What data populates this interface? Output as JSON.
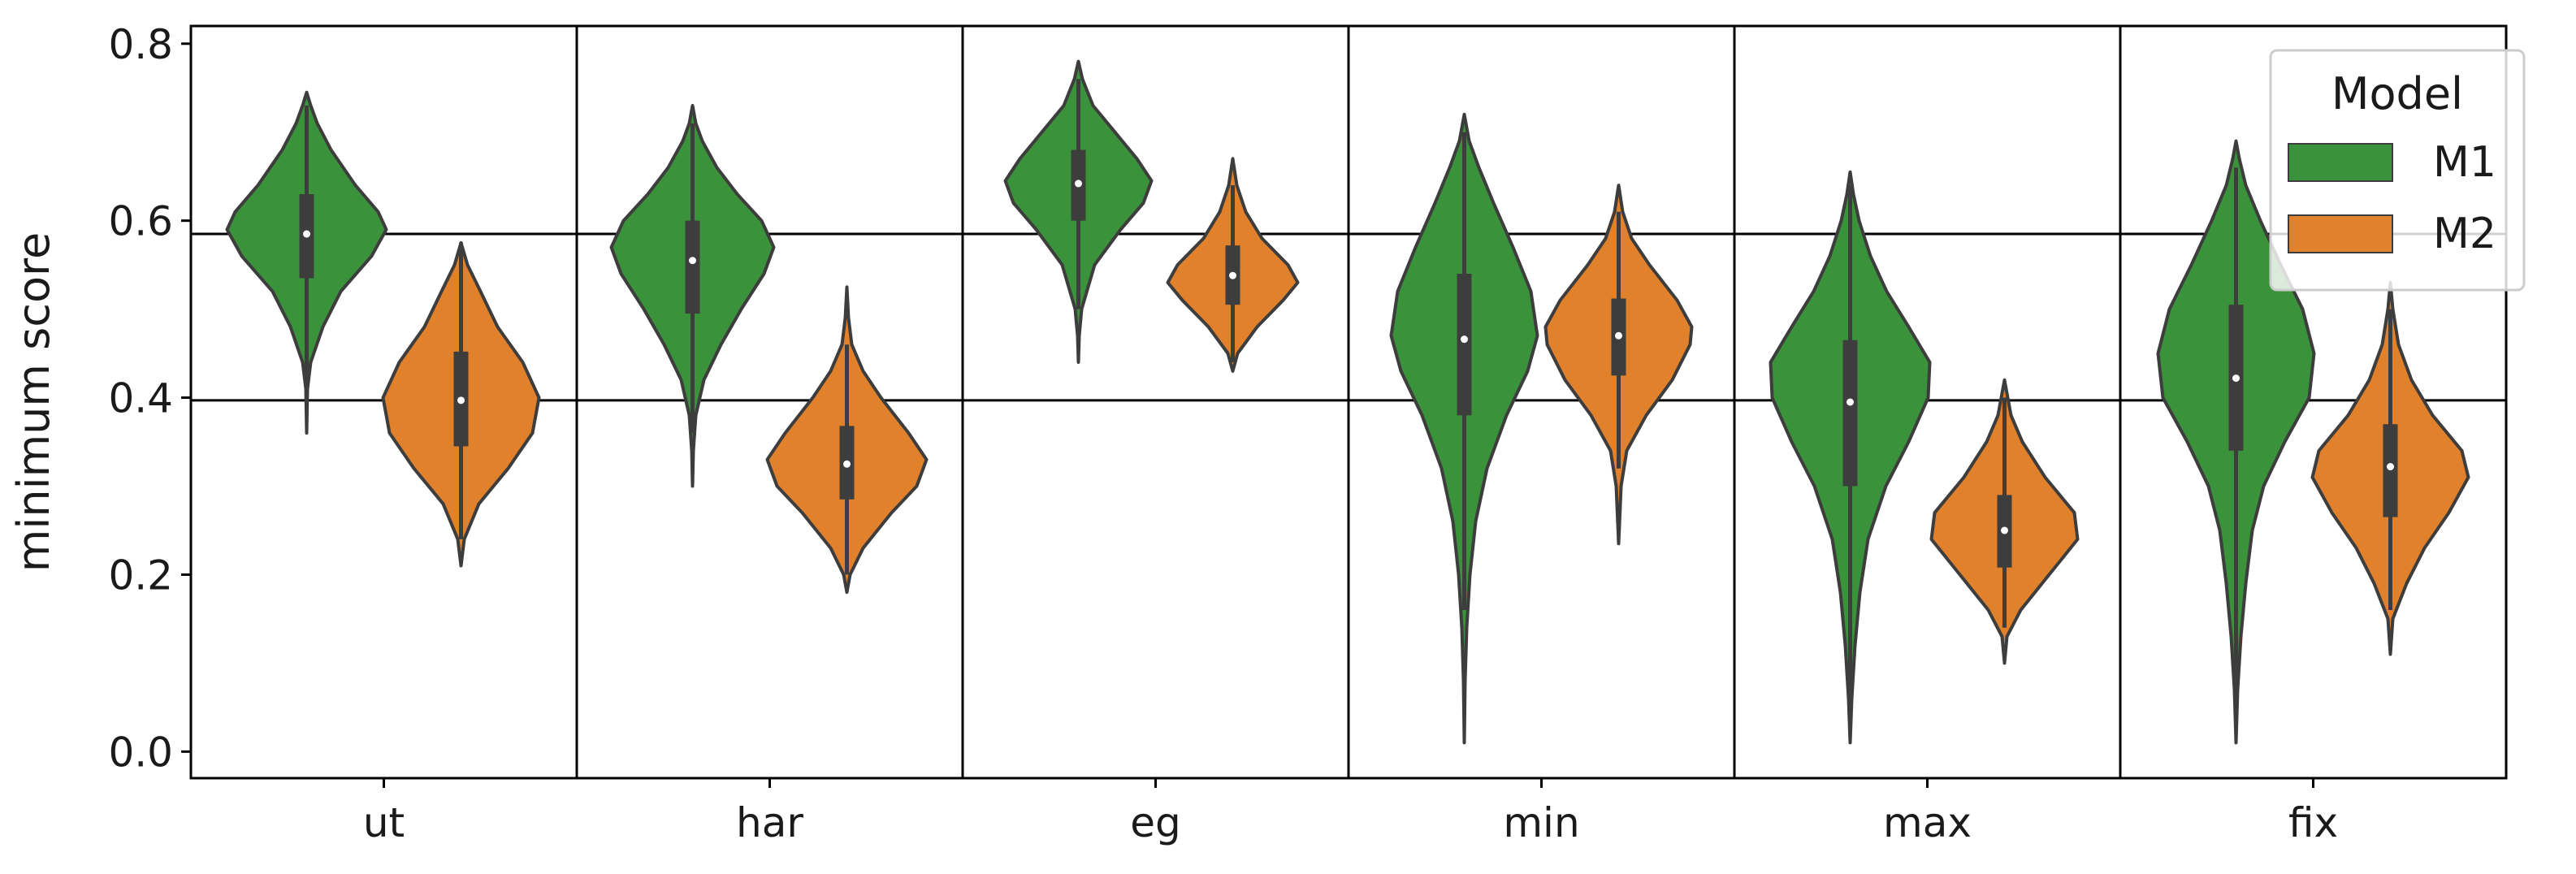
{
  "chart_data": {
    "type": "violin",
    "title": "",
    "xlabel": "",
    "ylabel": "minimum score",
    "ylim": [
      -0.03,
      0.82
    ],
    "yticks": [
      0.0,
      0.2,
      0.4,
      0.6,
      0.8
    ],
    "ytick_labels": [
      "0.0",
      "0.2",
      "0.4",
      "0.6",
      "0.8"
    ],
    "categories": [
      "ut",
      "har",
      "eg",
      "min",
      "max",
      "fix"
    ],
    "reference_lines": [
      0.585,
      0.397
    ],
    "legend": {
      "title": "Model",
      "position": "top-right"
    },
    "series": [
      {
        "name": "M1",
        "color": "#3a923a",
        "violins": [
          {
            "min": 0.36,
            "max": 0.745,
            "q1": 0.535,
            "median": 0.585,
            "q3": 0.63,
            "wlo": 0.41,
            "whi": 0.73,
            "profile": [
              [
                0.36,
                0
              ],
              [
                0.41,
                0.01
              ],
              [
                0.44,
                0.05
              ],
              [
                0.48,
                0.2
              ],
              [
                0.52,
                0.42
              ],
              [
                0.56,
                0.8
              ],
              [
                0.59,
                0.98
              ],
              [
                0.61,
                0.88
              ],
              [
                0.64,
                0.6
              ],
              [
                0.68,
                0.3
              ],
              [
                0.71,
                0.13
              ],
              [
                0.73,
                0.05
              ],
              [
                0.745,
                0
              ]
            ]
          },
          {
            "min": 0.3,
            "max": 0.73,
            "q1": 0.495,
            "median": 0.555,
            "q3": 0.6,
            "wlo": 0.36,
            "whi": 0.71,
            "profile": [
              [
                0.3,
                0
              ],
              [
                0.34,
                0.01
              ],
              [
                0.38,
                0.04
              ],
              [
                0.42,
                0.14
              ],
              [
                0.46,
                0.35
              ],
              [
                0.5,
                0.6
              ],
              [
                0.54,
                0.88
              ],
              [
                0.57,
                1.0
              ],
              [
                0.6,
                0.85
              ],
              [
                0.63,
                0.55
              ],
              [
                0.66,
                0.3
              ],
              [
                0.69,
                0.12
              ],
              [
                0.71,
                0.04
              ],
              [
                0.73,
                0
              ]
            ]
          },
          {
            "min": 0.44,
            "max": 0.78,
            "q1": 0.6,
            "median": 0.642,
            "q3": 0.68,
            "wlo": 0.5,
            "whi": 0.76,
            "profile": [
              [
                0.44,
                0
              ],
              [
                0.47,
                0.01
              ],
              [
                0.5,
                0.04
              ],
              [
                0.55,
                0.2
              ],
              [
                0.59,
                0.52
              ],
              [
                0.62,
                0.8
              ],
              [
                0.645,
                0.9
              ],
              [
                0.67,
                0.72
              ],
              [
                0.7,
                0.45
              ],
              [
                0.73,
                0.18
              ],
              [
                0.76,
                0.05
              ],
              [
                0.78,
                0
              ]
            ]
          },
          {
            "min": 0.01,
            "max": 0.72,
            "q1": 0.38,
            "median": 0.466,
            "q3": 0.54,
            "wlo": 0.16,
            "whi": 0.7,
            "profile": [
              [
                0.01,
                0
              ],
              [
                0.08,
                0.01
              ],
              [
                0.14,
                0.03
              ],
              [
                0.2,
                0.07
              ],
              [
                0.26,
                0.14
              ],
              [
                0.32,
                0.28
              ],
              [
                0.38,
                0.52
              ],
              [
                0.43,
                0.78
              ],
              [
                0.47,
                0.9
              ],
              [
                0.52,
                0.82
              ],
              [
                0.57,
                0.6
              ],
              [
                0.62,
                0.36
              ],
              [
                0.66,
                0.18
              ],
              [
                0.69,
                0.06
              ],
              [
                0.72,
                0
              ]
            ]
          },
          {
            "min": 0.01,
            "max": 0.655,
            "q1": 0.3,
            "median": 0.395,
            "q3": 0.465,
            "wlo": 0.05,
            "whi": 0.64,
            "profile": [
              [
                0.01,
                0
              ],
              [
                0.06,
                0.02
              ],
              [
                0.12,
                0.06
              ],
              [
                0.18,
                0.12
              ],
              [
                0.24,
                0.22
              ],
              [
                0.3,
                0.44
              ],
              [
                0.35,
                0.72
              ],
              [
                0.4,
                0.96
              ],
              [
                0.44,
                0.98
              ],
              [
                0.48,
                0.72
              ],
              [
                0.52,
                0.45
              ],
              [
                0.56,
                0.25
              ],
              [
                0.6,
                0.11
              ],
              [
                0.63,
                0.04
              ],
              [
                0.655,
                0
              ]
            ]
          },
          {
            "min": 0.01,
            "max": 0.69,
            "q1": 0.34,
            "median": 0.422,
            "q3": 0.505,
            "wlo": 0.06,
            "whi": 0.66,
            "profile": [
              [
                0.01,
                0
              ],
              [
                0.07,
                0.02
              ],
              [
                0.13,
                0.06
              ],
              [
                0.19,
                0.12
              ],
              [
                0.25,
                0.2
              ],
              [
                0.3,
                0.34
              ],
              [
                0.35,
                0.6
              ],
              [
                0.4,
                0.9
              ],
              [
                0.45,
                0.96
              ],
              [
                0.5,
                0.82
              ],
              [
                0.55,
                0.55
              ],
              [
                0.6,
                0.3
              ],
              [
                0.64,
                0.12
              ],
              [
                0.67,
                0.04
              ],
              [
                0.69,
                0
              ]
            ]
          }
        ]
      },
      {
        "name": "M2",
        "color": "#e1812c",
        "violins": [
          {
            "min": 0.21,
            "max": 0.575,
            "q1": 0.345,
            "median": 0.397,
            "q3": 0.452,
            "wlo": 0.24,
            "whi": 0.575,
            "profile": [
              [
                0.21,
                0
              ],
              [
                0.24,
                0.04
              ],
              [
                0.28,
                0.22
              ],
              [
                0.32,
                0.58
              ],
              [
                0.36,
                0.88
              ],
              [
                0.4,
                0.96
              ],
              [
                0.44,
                0.76
              ],
              [
                0.48,
                0.45
              ],
              [
                0.52,
                0.24
              ],
              [
                0.55,
                0.08
              ],
              [
                0.575,
                0
              ]
            ]
          },
          {
            "min": 0.18,
            "max": 0.525,
            "q1": 0.285,
            "median": 0.325,
            "q3": 0.368,
            "wlo": 0.2,
            "whi": 0.46,
            "profile": [
              [
                0.18,
                0
              ],
              [
                0.2,
                0.04
              ],
              [
                0.23,
                0.2
              ],
              [
                0.27,
                0.55
              ],
              [
                0.3,
                0.86
              ],
              [
                0.33,
                0.98
              ],
              [
                0.36,
                0.76
              ],
              [
                0.4,
                0.42
              ],
              [
                0.43,
                0.2
              ],
              [
                0.46,
                0.06
              ],
              [
                0.49,
                0.02
              ],
              [
                0.525,
                0
              ]
            ]
          },
          {
            "min": 0.43,
            "max": 0.67,
            "q1": 0.505,
            "median": 0.538,
            "q3": 0.572,
            "wlo": 0.44,
            "whi": 0.64,
            "profile": [
              [
                0.43,
                0
              ],
              [
                0.45,
                0.06
              ],
              [
                0.48,
                0.3
              ],
              [
                0.51,
                0.62
              ],
              [
                0.53,
                0.8
              ],
              [
                0.55,
                0.68
              ],
              [
                0.58,
                0.36
              ],
              [
                0.61,
                0.16
              ],
              [
                0.64,
                0.05
              ],
              [
                0.67,
                0
              ]
            ]
          },
          {
            "min": 0.235,
            "max": 0.64,
            "q1": 0.425,
            "median": 0.47,
            "q3": 0.512,
            "wlo": 0.32,
            "whi": 0.61,
            "profile": [
              [
                0.235,
                0
              ],
              [
                0.3,
                0.03
              ],
              [
                0.34,
                0.1
              ],
              [
                0.38,
                0.34
              ],
              [
                0.42,
                0.66
              ],
              [
                0.46,
                0.88
              ],
              [
                0.48,
                0.9
              ],
              [
                0.51,
                0.72
              ],
              [
                0.55,
                0.38
              ],
              [
                0.58,
                0.16
              ],
              [
                0.61,
                0.05
              ],
              [
                0.64,
                0
              ]
            ]
          },
          {
            "min": 0.1,
            "max": 0.42,
            "q1": 0.208,
            "median": 0.25,
            "q3": 0.29,
            "wlo": 0.14,
            "whi": 0.4,
            "profile": [
              [
                0.1,
                0
              ],
              [
                0.13,
                0.03
              ],
              [
                0.16,
                0.2
              ],
              [
                0.2,
                0.55
              ],
              [
                0.24,
                0.9
              ],
              [
                0.27,
                0.86
              ],
              [
                0.31,
                0.5
              ],
              [
                0.35,
                0.22
              ],
              [
                0.38,
                0.08
              ],
              [
                0.42,
                0
              ]
            ]
          },
          {
            "min": 0.11,
            "max": 0.53,
            "q1": 0.265,
            "median": 0.322,
            "q3": 0.37,
            "wlo": 0.16,
            "whi": 0.5,
            "profile": [
              [
                0.11,
                0
              ],
              [
                0.15,
                0.03
              ],
              [
                0.19,
                0.2
              ],
              [
                0.23,
                0.42
              ],
              [
                0.27,
                0.72
              ],
              [
                0.31,
                0.96
              ],
              [
                0.34,
                0.88
              ],
              [
                0.38,
                0.52
              ],
              [
                0.42,
                0.26
              ],
              [
                0.46,
                0.1
              ],
              [
                0.5,
                0.03
              ],
              [
                0.53,
                0
              ]
            ]
          }
        ]
      }
    ]
  }
}
